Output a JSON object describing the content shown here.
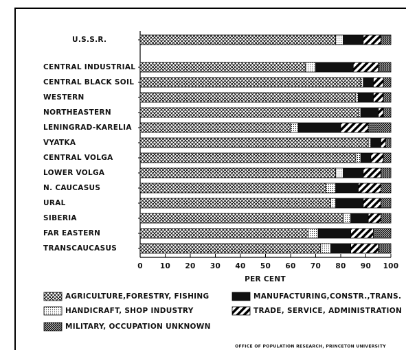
{
  "chart_data": {
    "type": "bar",
    "orientation": "horizontal",
    "stacked": true,
    "categories": [
      "U.S.S.R.",
      "CENTRAL INDUSTRIAL",
      "CENTRAL BLACK SOIL",
      "WESTERN",
      "NORTHEASTERN",
      "LENINGRAD-KARELIA",
      "VYATKA",
      "CENTRAL VOLGA",
      "LOWER VOLGA",
      "N. CAUCASUS",
      "URAL",
      "SIBERIA",
      "FAR EASTERN",
      "TRANSCAUCASUS"
    ],
    "series": [
      {
        "name": "AGRICULTURE,FORESTRY, FISHING",
        "color": "#000000",
        "pattern": "crosshatch",
        "values": [
          78,
          66,
          88,
          86,
          87,
          60,
          91,
          86,
          78,
          74,
          76,
          81,
          67,
          72
        ]
      },
      {
        "name": "HANDICRAFT, SHOP INDUSTRY",
        "color": "#000000",
        "pattern": "dots",
        "values": [
          3,
          4,
          1,
          1,
          1,
          3,
          1,
          2,
          3,
          4,
          2,
          3,
          4,
          4
        ]
      },
      {
        "name": "MANUFACTURING,CONSTR.,TRANS.",
        "color": "#000000",
        "pattern": "solid",
        "values": [
          8,
          15,
          4,
          6,
          7,
          17,
          4,
          4,
          8,
          9,
          11,
          7,
          13,
          8
        ]
      },
      {
        "name": "TRADE, SERVICE, ADMINISTRATION",
        "color": "#000000",
        "pattern": "stripes",
        "values": [
          7,
          10,
          4,
          4,
          2,
          11,
          2,
          5,
          7,
          9,
          7,
          5,
          9,
          11
        ]
      },
      {
        "name": "MILITARY, OCCUPATION UNKNOWN",
        "color": "#000000",
        "pattern": "dense",
        "values": [
          4,
          5,
          3,
          3,
          3,
          9,
          2,
          3,
          4,
          4,
          4,
          4,
          7,
          5
        ]
      }
    ],
    "xlabel": "PER CENT",
    "xlim": [
      0,
      100
    ],
    "xticks": [
      0,
      10,
      20,
      30,
      40,
      50,
      60,
      70,
      80,
      90,
      100
    ],
    "source": "OFFICE OF POPULATION RESEARCH, PRINCETON UNIVERSITY"
  }
}
